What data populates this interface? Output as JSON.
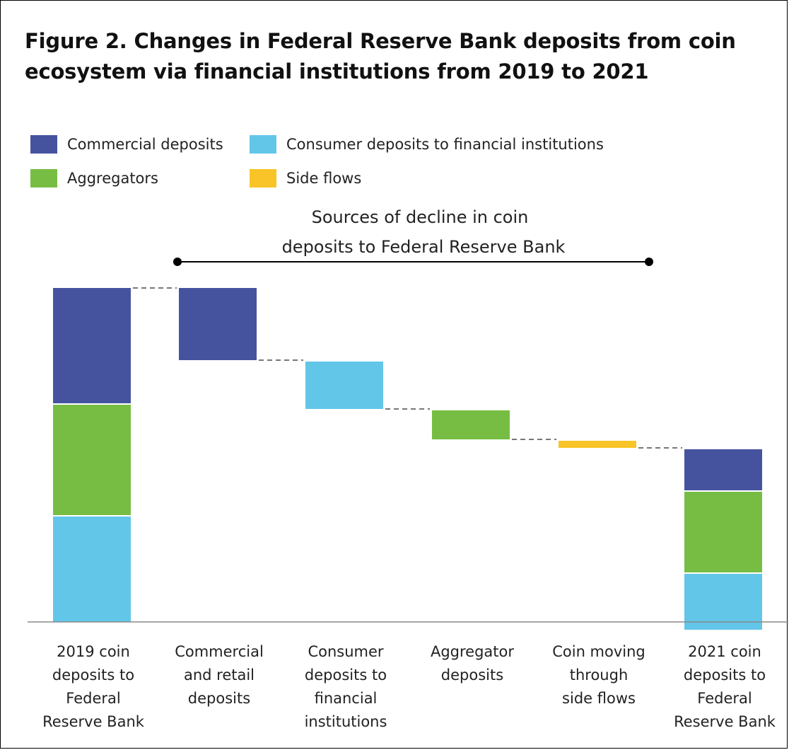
{
  "title_lines": [
    "Figure 2. Changes in Federal Reserve Bank deposits from coin",
    "ecosystem via financial institutions from 2019 to 2021"
  ],
  "legend": [
    {
      "label": "Commercial deposits",
      "color": "#45539F"
    },
    {
      "label": "Consumer deposits to financial institutions",
      "color": "#62C6E9"
    },
    {
      "label": "Aggregators",
      "color": "#77BD43"
    },
    {
      "label": "Side flows",
      "color": "#F8C428"
    }
  ],
  "annotation": {
    "lines": [
      "Sources of decline in coin",
      "deposits to Federal Reserve Bank"
    ]
  },
  "chart_data": {
    "type": "bar",
    "subtype": "waterfall",
    "title": "Figure 2. Changes in Federal Reserve Bank deposits from coin ecosystem via financial institutions from 2019 to 2021",
    "xlabel": "",
    "ylabel": "",
    "y_axis_visible": false,
    "grid": false,
    "legend_position": "top-left",
    "ylim": [
      -11,
      470
    ],
    "categories": [
      [
        "2019 coin",
        "deposits to",
        "Federal",
        "Reserve Bank"
      ],
      [
        "Commercial",
        "and retail",
        "deposits"
      ],
      [
        "Consumer",
        "deposits to",
        "financial",
        "institutions"
      ],
      [
        "Aggregator",
        "deposits"
      ],
      [
        "Coin moving",
        "through",
        "side flows"
      ],
      [
        "2021 coin",
        "deposits to",
        "Federal",
        "Reserve Bank"
      ]
    ],
    "bars": [
      {
        "kind": "stack",
        "segments": [
          {
            "series": "Consumer deposits to financial institutions",
            "from": 0,
            "to": 150
          },
          {
            "series": "Aggregators",
            "from": 150,
            "to": 308
          },
          {
            "series": "Commercial deposits",
            "from": 308,
            "to": 472
          }
        ]
      },
      {
        "kind": "float",
        "segments": [
          {
            "series": "Commercial deposits",
            "from": 370,
            "to": 472
          }
        ]
      },
      {
        "kind": "float",
        "segments": [
          {
            "series": "Consumer deposits to financial institutions",
            "from": 301,
            "to": 368
          }
        ]
      },
      {
        "kind": "float",
        "segments": [
          {
            "series": "Aggregators",
            "from": 258,
            "to": 299
          }
        ]
      },
      {
        "kind": "float",
        "segments": [
          {
            "series": "Side flows",
            "from": 246,
            "to": 256
          }
        ]
      },
      {
        "kind": "stack",
        "segments": [
          {
            "series": "Consumer deposits to financial institutions",
            "from": -11,
            "to": 69
          },
          {
            "series": "Aggregators",
            "from": 69,
            "to": 185
          },
          {
            "series": "Commercial deposits",
            "from": 185,
            "to": 244
          }
        ]
      }
    ],
    "connectors": [
      {
        "from_bar": 0,
        "to_bar": 1,
        "value": 472
      },
      {
        "from_bar": 1,
        "to_bar": 2,
        "value": 370
      },
      {
        "from_bar": 2,
        "to_bar": 3,
        "value": 301
      },
      {
        "from_bar": 3,
        "to_bar": 4,
        "value": 258
      },
      {
        "from_bar": 4,
        "to_bar": 5,
        "value": 246
      }
    ],
    "bracket": {
      "from_bar": 1,
      "to_bar": 4
    }
  }
}
